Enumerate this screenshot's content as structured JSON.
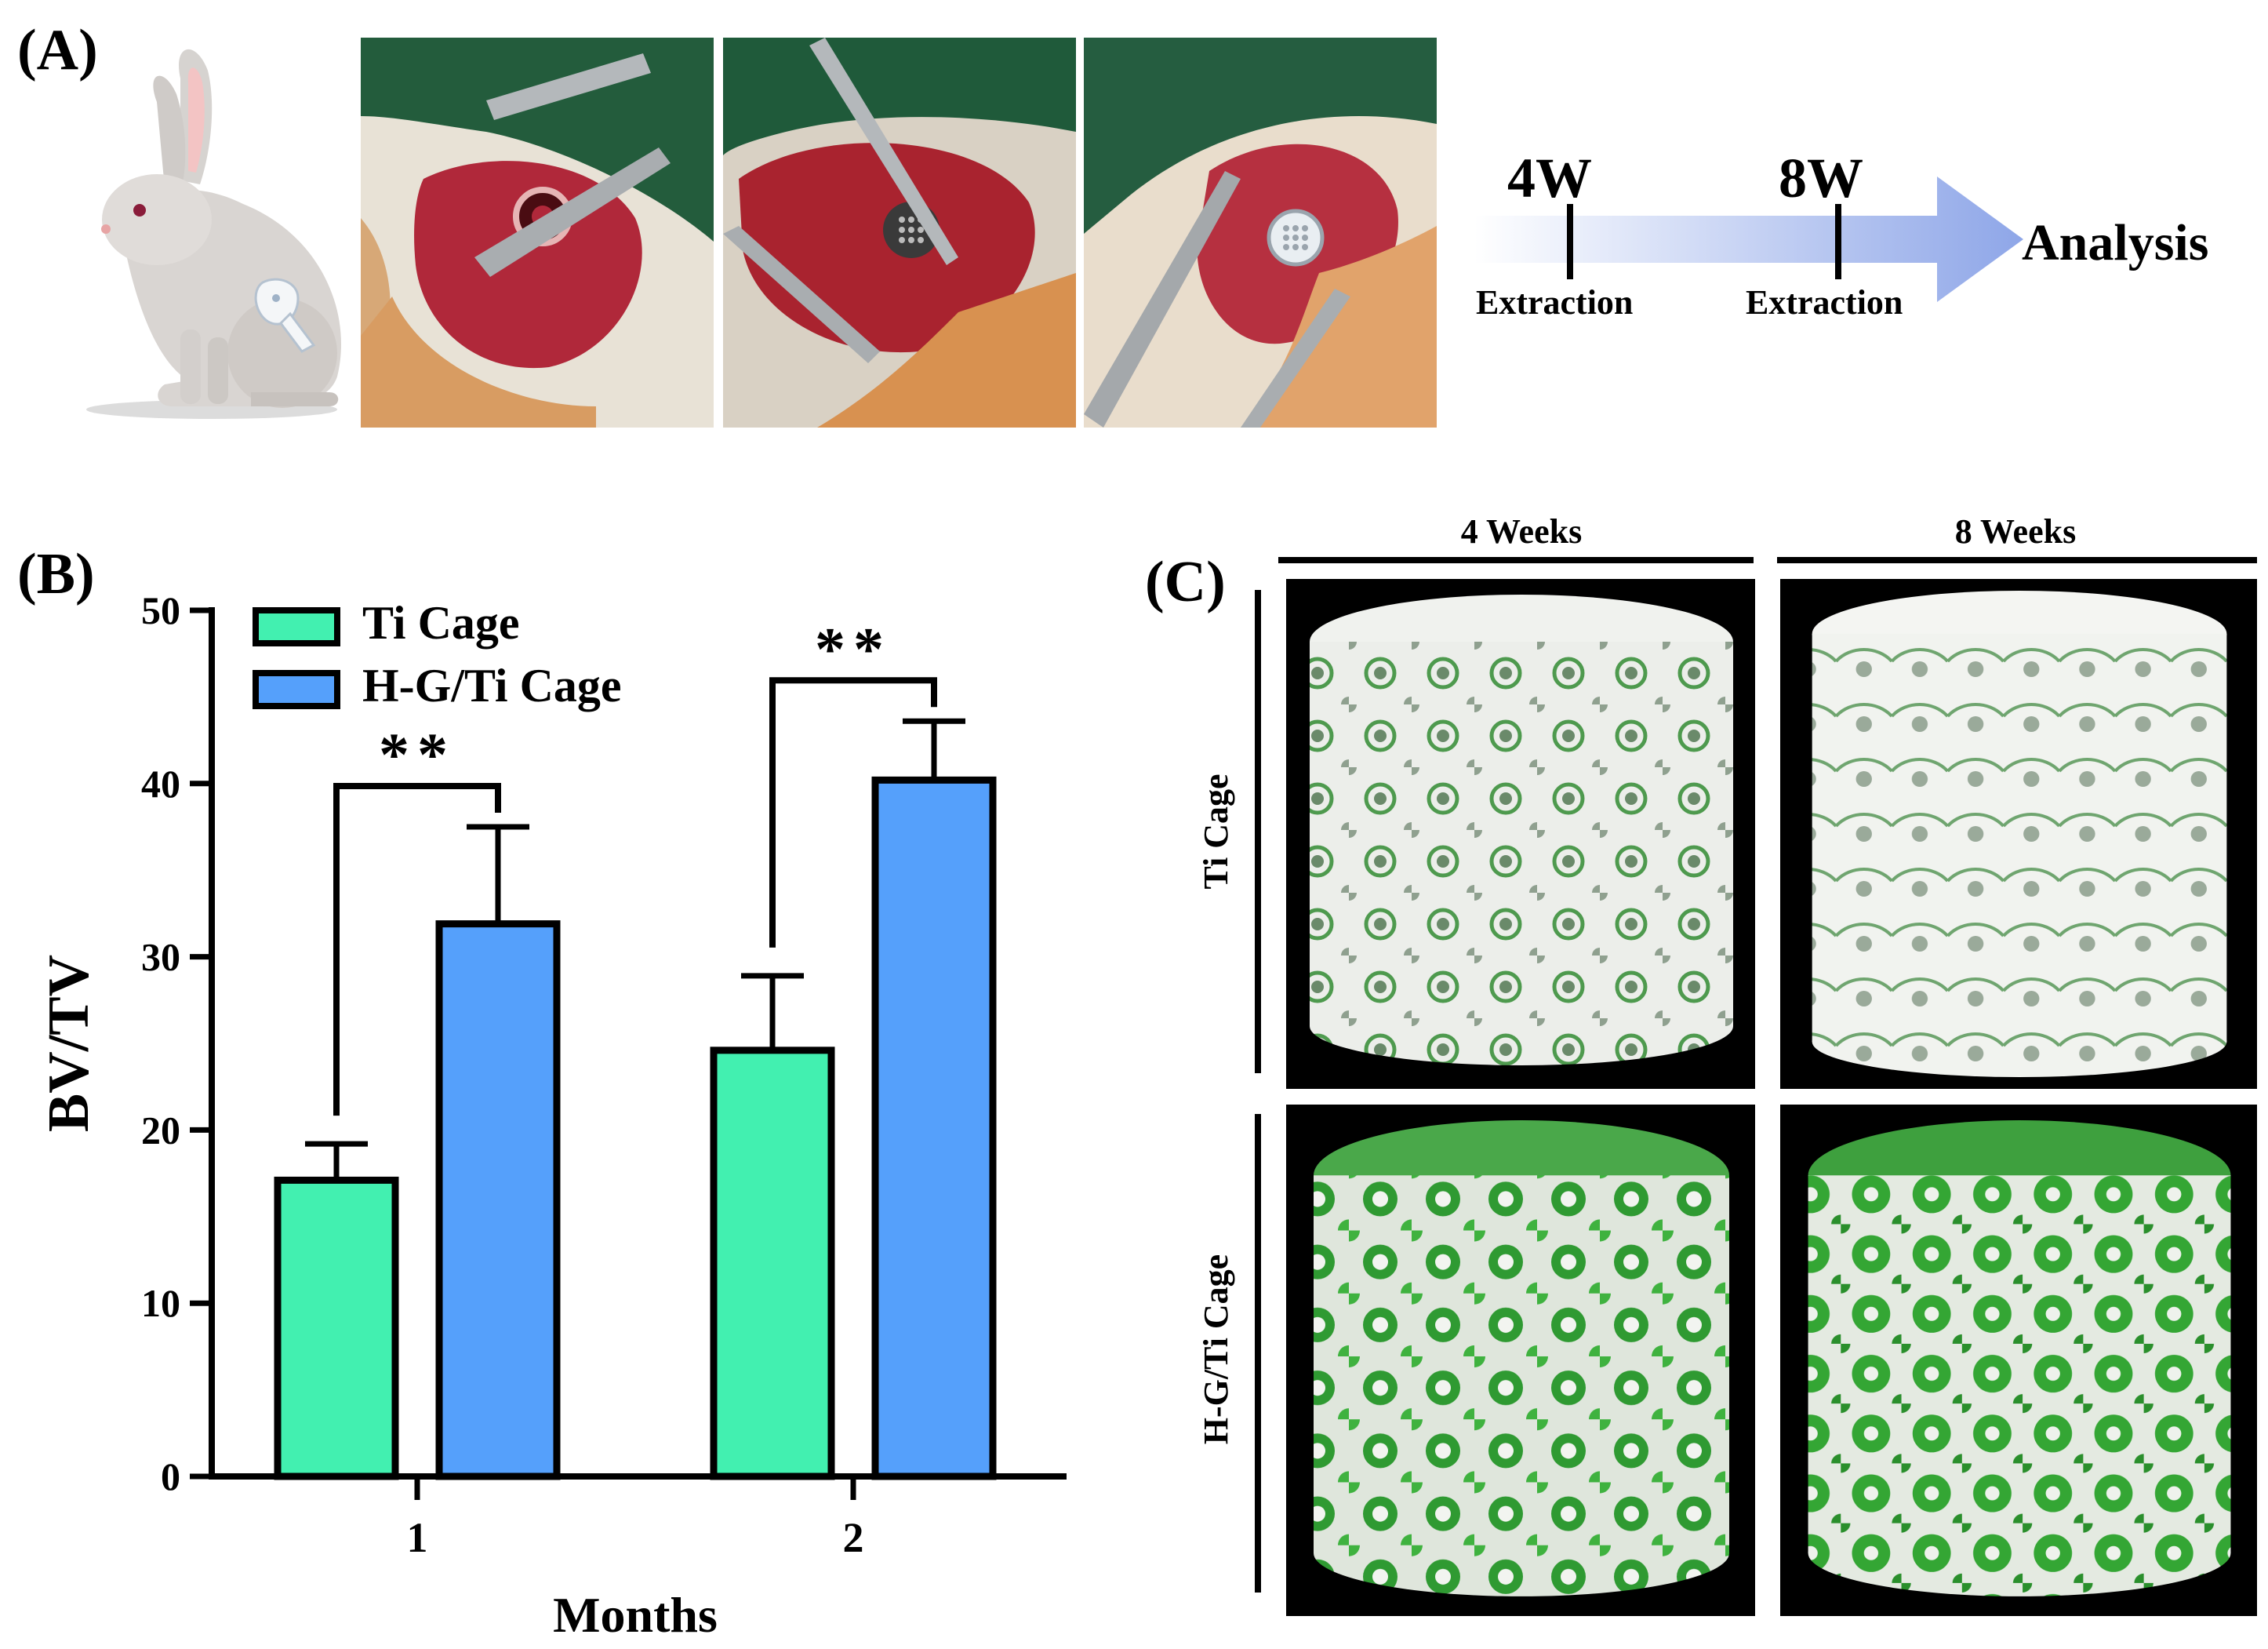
{
  "panels": {
    "a_label": "(A)",
    "b_label": "(B)",
    "c_label": "(C)"
  },
  "timeline": {
    "milestones": [
      {
        "time": "4W",
        "label": "Extraction"
      },
      {
        "time": "8W",
        "label": "Extraction"
      }
    ],
    "end_label": "Analysis",
    "arrow_color": "#9fb3ea"
  },
  "micro_ct": {
    "columns": [
      "4 Weeks",
      "8 Weeks"
    ],
    "rows": [
      "Ti Cage",
      "H-G/Ti Cage"
    ]
  },
  "chart_data": {
    "type": "bar",
    "categories": [
      "1",
      "2"
    ],
    "xlabel": "Months",
    "ylabel": "BV/TV",
    "ylim": [
      0,
      50
    ],
    "yticks": [
      0,
      10,
      20,
      30,
      40,
      50
    ],
    "grid": false,
    "legend": "top-left",
    "series": [
      {
        "name": "Ti Cage",
        "color": "#42f0b0",
        "values": [
          17.1,
          24.6
        ],
        "errors": [
          2.1,
          4.3
        ]
      },
      {
        "name": "H-G/Ti Cage",
        "color": "#55a0fb",
        "values": [
          31.9,
          40.2
        ],
        "errors": [
          5.6,
          3.4
        ]
      }
    ],
    "significance": [
      {
        "category": "1",
        "label": "**"
      },
      {
        "category": "2",
        "label": "**"
      }
    ]
  }
}
